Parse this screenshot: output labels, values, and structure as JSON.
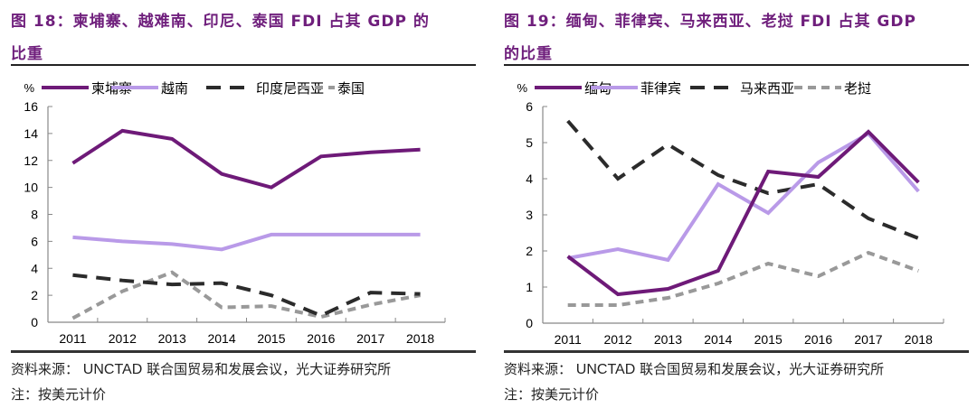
{
  "figures": [
    {
      "title_line1": "图 18：柬埔寨、越难南、印尼、泰国 FDI 占其 GDP 的",
      "title_line2": "比重",
      "source_label": "资料来源：",
      "source_en": "UNCTAD",
      "source_rest": "联合国贸易和发展会议，光大证券研究所",
      "note": "注：按美元计价"
    },
    {
      "title_line1": "图 19：缅甸、菲律宾、马来西亚、老挝 FDI 占其 GDP",
      "title_line2": "的比重",
      "source_label": "资料来源：",
      "source_en": "UNCTAD",
      "source_rest": "联合国贸易和发展会议，光大证券研究所",
      "note": "注：按美元计价"
    }
  ],
  "chart_data": [
    {
      "type": "line",
      "title": "图 18：柬埔寨、越难南、印尼、泰国 FDI 占其 GDP 的比重",
      "ylabel": "%",
      "xlabel": "",
      "categories": [
        "2011",
        "2012",
        "2013",
        "2014",
        "2015",
        "2016",
        "2017",
        "2018"
      ],
      "ylim": [
        0,
        16
      ],
      "yticks": [
        0,
        2,
        4,
        6,
        8,
        10,
        12,
        14,
        16
      ],
      "grid": false,
      "legend": "top",
      "series": [
        {
          "name": "柬埔寨",
          "color": "#6e1a78",
          "dash": "solid",
          "values": [
            11.8,
            14.2,
            13.6,
            11.0,
            10.0,
            12.3,
            12.6,
            12.8
          ]
        },
        {
          "name": "越南",
          "color": "#b99ae8",
          "dash": "solid",
          "values": [
            6.3,
            6.0,
            5.8,
            5.4,
            6.5,
            6.5,
            6.5,
            6.5
          ]
        },
        {
          "name": "印度尼西亚",
          "color": "#2b2b2b",
          "dash": "long-dash",
          "values": [
            3.5,
            3.1,
            2.8,
            2.9,
            2.0,
            0.5,
            2.2,
            2.1
          ]
        },
        {
          "name": "泰国",
          "color": "#999999",
          "dash": "short-dash",
          "values": [
            0.3,
            2.3,
            3.7,
            1.1,
            1.2,
            0.4,
            1.3,
            2.0
          ]
        }
      ]
    },
    {
      "type": "line",
      "title": "图 19：缅甸、菲律宾、马来西亚、老挝 FDI 占其 GDP 的比重",
      "ylabel": "%",
      "xlabel": "",
      "categories": [
        "2011",
        "2012",
        "2013",
        "2014",
        "2015",
        "2016",
        "2017",
        "2018"
      ],
      "ylim": [
        0,
        6
      ],
      "yticks": [
        0,
        1,
        2,
        3,
        4,
        5,
        6
      ],
      "grid": false,
      "legend": "top",
      "series": [
        {
          "name": "缅甸",
          "color": "#6e1a78",
          "dash": "solid",
          "values": [
            1.85,
            0.8,
            0.95,
            1.45,
            4.2,
            4.05,
            5.3,
            3.9
          ]
        },
        {
          "name": "菲律宾",
          "color": "#b99ae8",
          "dash": "solid",
          "values": [
            1.8,
            2.05,
            1.75,
            3.85,
            3.05,
            4.45,
            5.25,
            3.65
          ]
        },
        {
          "name": "马来西亚",
          "color": "#2b2b2b",
          "dash": "long-dash",
          "values": [
            5.6,
            4.0,
            4.95,
            4.1,
            3.6,
            3.85,
            2.9,
            2.35
          ]
        },
        {
          "name": "老挝",
          "color": "#999999",
          "dash": "short-dash",
          "values": [
            0.5,
            0.5,
            0.7,
            1.1,
            1.65,
            1.3,
            1.95,
            1.45
          ]
        }
      ]
    }
  ]
}
